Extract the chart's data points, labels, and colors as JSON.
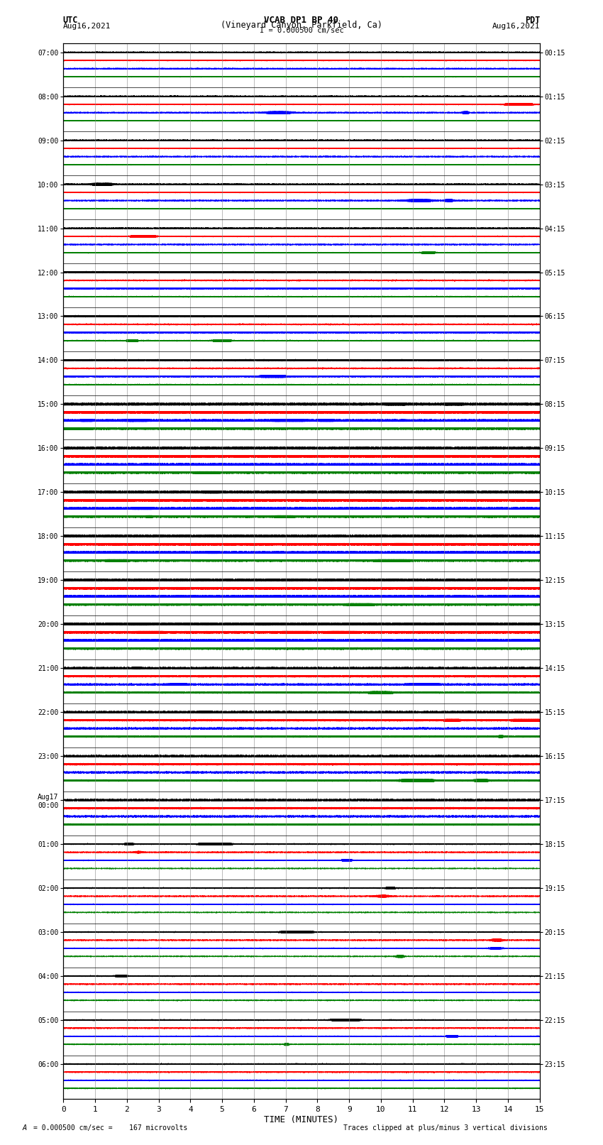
{
  "title_line1": "VCAB DP1 BP 40",
  "title_line2": "(Vineyard Canyon, Parkfield, Ca)",
  "scale_label": "I = 0.000500 cm/sec",
  "left_label1": "UTC",
  "left_label2": "Aug16,2021",
  "right_label1": "PDT",
  "right_label2": "Aug16,2021",
  "bottom_label": "TIME (MINUTES)",
  "bottom_note_left": "A",
  "bottom_note_mid": "= 0.000500 cm/sec =    167 microvolts",
  "bottom_note_right": "Traces clipped at plus/minus 3 vertical divisions",
  "utc_labels": [
    "07:00",
    "08:00",
    "09:00",
    "10:00",
    "11:00",
    "12:00",
    "13:00",
    "14:00",
    "15:00",
    "16:00",
    "17:00",
    "18:00",
    "19:00",
    "20:00",
    "21:00",
    "22:00",
    "23:00",
    "Aug17\n00:00",
    "01:00",
    "02:00",
    "03:00",
    "04:00",
    "05:00",
    "06:00"
  ],
  "pdt_labels": [
    "00:15",
    "01:15",
    "02:15",
    "03:15",
    "04:15",
    "05:15",
    "06:15",
    "07:15",
    "08:15",
    "09:15",
    "10:15",
    "11:15",
    "12:15",
    "13:15",
    "14:15",
    "15:15",
    "16:15",
    "17:15",
    "18:15",
    "19:15",
    "20:15",
    "21:15",
    "22:15",
    "23:15"
  ],
  "n_rows": 24,
  "n_traces": 4,
  "colors": [
    "#000000",
    "#ff0000",
    "#0000ff",
    "#008000"
  ],
  "minutes": 15,
  "sample_rate": 50,
  "figure_width": 8.5,
  "figure_height": 16.13,
  "dpi": 100,
  "background_color": "#ffffff",
  "grid_color": "#888888",
  "separator_color": "#000000"
}
